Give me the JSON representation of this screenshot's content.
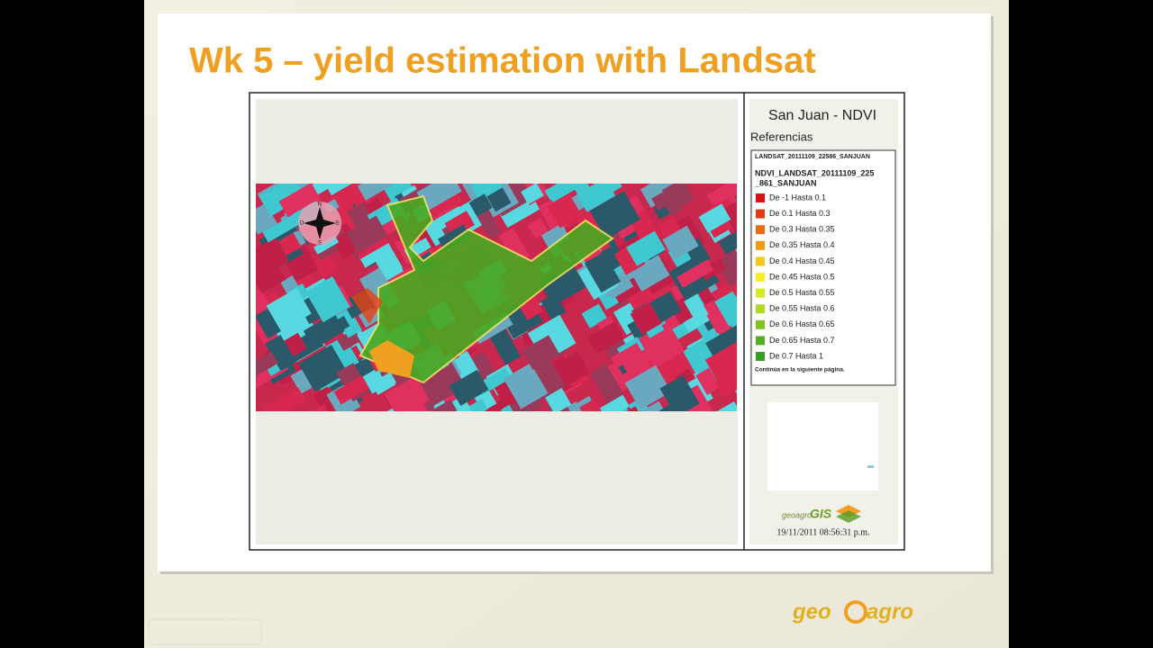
{
  "slide": {
    "title": "Wk 5 – yield estimation with Landsat"
  },
  "map": {
    "title": "San Juan - NDVI",
    "references_heading": "Referencias",
    "layer": "LANDSAT_20111109_22586_SANJUAN",
    "ndvi_layer_lines": [
      "NDVI_LANDSAT_20111109_225",
      "_861_SANJUAN"
    ],
    "legend": {
      "items": [
        {
          "label": "De -1 Hasta 0.1",
          "color": "#e01010"
        },
        {
          "label": "De 0.1 Hasta 0.3",
          "color": "#e83a10"
        },
        {
          "label": "De 0.3 Hasta 0.35",
          "color": "#ee6a10"
        },
        {
          "label": "De 0.35 Hasta 0.4",
          "color": "#f39a14"
        },
        {
          "label": "De 0.4 Hasta 0.45",
          "color": "#f7c818"
        },
        {
          "label": "De 0.45 Hasta 0.5",
          "color": "#f6ef20"
        },
        {
          "label": "De 0.5 Hasta 0.55",
          "color": "#d6ea20"
        },
        {
          "label": "De 0.55 Hasta 0.6",
          "color": "#b0dc20"
        },
        {
          "label": "De 0.6 Hasta 0.65",
          "color": "#7cc420"
        },
        {
          "label": "De 0.65 Hasta 0.7",
          "color": "#50b020"
        },
        {
          "label": "De 0.7 Hasta 1",
          "color": "#38a020"
        }
      ],
      "continued": "Continúa en la siguiente página."
    },
    "compass": [
      "N",
      "O",
      "E",
      "S"
    ],
    "brand_small": {
      "prefix": "geoagro",
      "suffix": "GIS"
    },
    "timestamp": "19/11/2011 08:56:31 p.m."
  },
  "brand": {
    "left": "geo",
    "right": "agro"
  }
}
